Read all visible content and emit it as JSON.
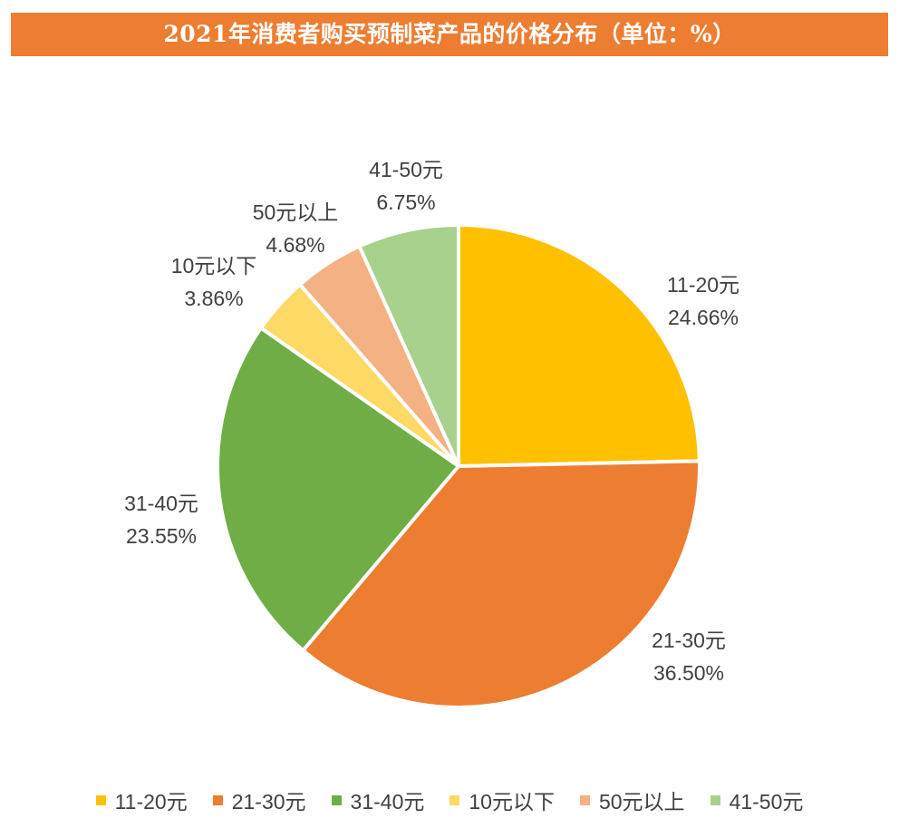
{
  "title": "2021年消费者购买预制菜产品的价格分布（单位：%）",
  "chart_data": {
    "type": "pie",
    "categories": [
      "11-20元",
      "21-30元",
      "31-40元",
      "10元以下",
      "50元以上",
      "41-50元"
    ],
    "values": [
      24.66,
      36.5,
      23.55,
      3.86,
      4.68,
      6.75
    ],
    "value_labels": [
      "24.66%",
      "36.50%",
      "23.55%",
      "3.86%",
      "4.68%",
      "6.75%"
    ],
    "colors": [
      "#FFC000",
      "#ED7D31",
      "#70AD47",
      "#FFD966",
      "#F4B183",
      "#A9D18E"
    ],
    "start": "12 o'clock",
    "direction": "clockwise",
    "legend": "bottom"
  }
}
